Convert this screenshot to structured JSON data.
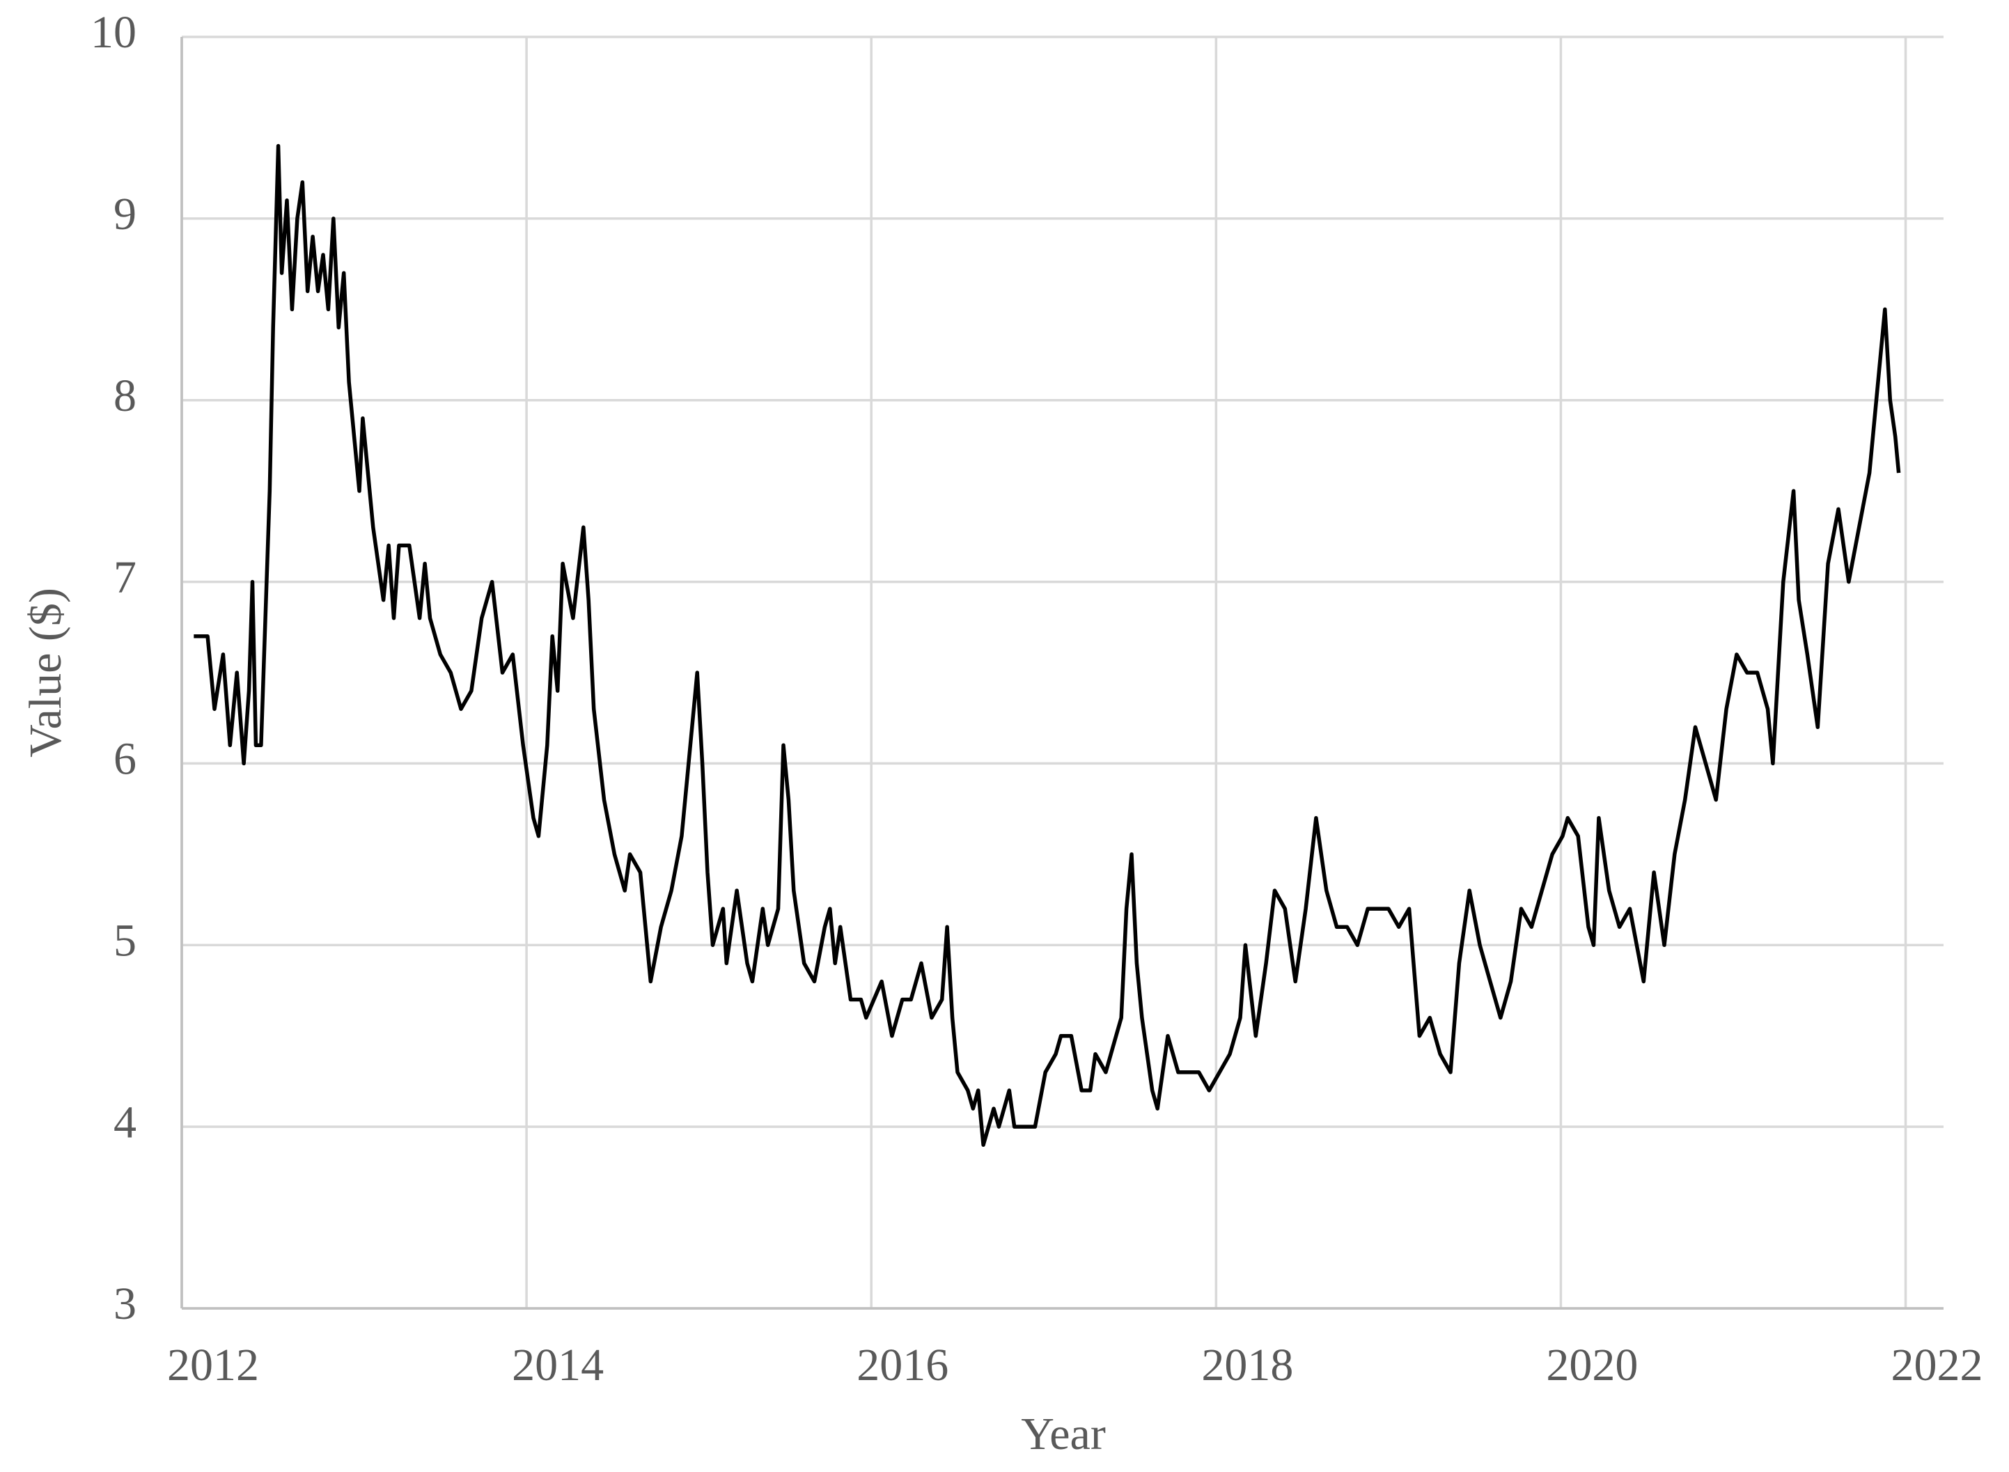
{
  "chart_data": {
    "type": "line",
    "x_label": "Year",
    "y_label": "Value ($)",
    "color": "#000000",
    "grid": true,
    "xlim": [
      2012,
      2022.22
    ],
    "xticks": [
      2012,
      2014,
      2016,
      2018,
      2020,
      2022
    ],
    "ylim": [
      3,
      10
    ],
    "yticks": [
      3,
      4,
      5,
      6,
      7,
      8,
      9,
      10
    ],
    "x": [
      2012.07,
      2012.15,
      2012.19,
      2012.24,
      2012.28,
      2012.32,
      2012.36,
      2012.39,
      2012.41,
      2012.43,
      2012.46,
      2012.51,
      2012.53,
      2012.56,
      2012.58,
      2012.61,
      2012.64,
      2012.67,
      2012.7,
      2012.73,
      2012.76,
      2012.79,
      2012.82,
      2012.85,
      2012.88,
      2012.91,
      2012.94,
      2012.97,
      2013.03,
      2013.05,
      2013.11,
      2013.17,
      2013.2,
      2013.23,
      2013.26,
      2013.32,
      2013.38,
      2013.41,
      2013.44,
      2013.5,
      2013.56,
      2013.62,
      2013.68,
      2013.74,
      2013.8,
      2013.86,
      2013.92,
      2013.98,
      2014.04,
      2014.07,
      2014.12,
      2014.15,
      2014.18,
      2014.21,
      2014.27,
      2014.33,
      2014.36,
      2014.39,
      2014.45,
      2014.51,
      2014.57,
      2014.6,
      2014.66,
      2014.72,
      2014.78,
      2014.84,
      2014.9,
      2014.96,
      2014.99,
      2015.02,
      2015.05,
      2015.08,
      2015.14,
      2015.16,
      2015.22,
      2015.28,
      2015.31,
      2015.37,
      2015.4,
      2015.46,
      2015.49,
      2015.52,
      2015.55,
      2015.61,
      2015.67,
      2015.73,
      2015.76,
      2015.79,
      2015.82,
      2015.88,
      2015.94,
      2015.97,
      2016.06,
      2016.12,
      2016.18,
      2016.23,
      2016.29,
      2016.35,
      2016.41,
      2016.44,
      2016.47,
      2016.5,
      2016.56,
      2016.59,
      2016.62,
      2016.65,
      2016.71,
      2016.74,
      2016.8,
      2016.83,
      2016.89,
      2016.95,
      2017.01,
      2017.07,
      2017.1,
      2017.16,
      2017.22,
      2017.27,
      2017.3,
      2017.36,
      2017.42,
      2017.45,
      2017.48,
      2017.51,
      2017.54,
      2017.57,
      2017.63,
      2017.66,
      2017.72,
      2017.78,
      2017.84,
      2017.9,
      2017.96,
      2018.02,
      2018.08,
      2018.14,
      2018.17,
      2018.23,
      2018.29,
      2018.34,
      2018.4,
      2018.46,
      2018.52,
      2018.58,
      2018.64,
      2018.7,
      2018.76,
      2018.82,
      2018.88,
      2018.94,
      2019.0,
      2019.06,
      2019.12,
      2019.18,
      2019.24,
      2019.3,
      2019.36,
      2019.41,
      2019.47,
      2019.53,
      2019.59,
      2019.65,
      2019.71,
      2019.77,
      2019.83,
      2019.89,
      2019.95,
      2020.01,
      2020.04,
      2020.1,
      2020.16,
      2020.19,
      2020.22,
      2020.28,
      2020.34,
      2020.4,
      2020.48,
      2020.54,
      2020.6,
      2020.66,
      2020.72,
      2020.78,
      2020.84,
      2020.9,
      2020.96,
      2021.02,
      2021.08,
      2021.14,
      2021.2,
      2021.23,
      2021.29,
      2021.35,
      2021.38,
      2021.43,
      2021.49,
      2021.55,
      2021.61,
      2021.67,
      2021.73,
      2021.79,
      2021.85,
      2021.88,
      2021.91,
      2021.94,
      2021.96
    ],
    "values": [
      6.7,
      6.7,
      6.3,
      6.6,
      6.1,
      6.5,
      6.0,
      6.4,
      7.0,
      6.1,
      6.1,
      7.5,
      8.4,
      9.4,
      8.7,
      9.1,
      8.5,
      9.0,
      9.2,
      8.6,
      8.9,
      8.6,
      8.8,
      8.5,
      9.0,
      8.4,
      8.7,
      8.1,
      7.5,
      7.9,
      7.3,
      6.9,
      7.2,
      6.8,
      7.2,
      7.2,
      6.8,
      7.1,
      6.8,
      6.6,
      6.5,
      6.3,
      6.4,
      6.8,
      7.0,
      6.5,
      6.6,
      6.1,
      5.7,
      5.6,
      6.1,
      6.7,
      6.4,
      7.1,
      6.8,
      7.3,
      6.9,
      6.3,
      5.8,
      5.5,
      5.3,
      5.5,
      5.4,
      4.8,
      5.1,
      5.3,
      5.6,
      6.2,
      6.5,
      6.0,
      5.4,
      5.0,
      5.2,
      4.9,
      5.3,
      4.9,
      4.8,
      5.2,
      5.0,
      5.2,
      6.1,
      5.8,
      5.3,
      4.9,
      4.8,
      5.1,
      5.2,
      4.9,
      5.1,
      4.7,
      4.7,
      4.6,
      4.8,
      4.5,
      4.7,
      4.7,
      4.9,
      4.6,
      4.7,
      5.1,
      4.6,
      4.3,
      4.2,
      4.1,
      4.2,
      3.9,
      4.1,
      4.0,
      4.2,
      4.0,
      4.0,
      4.0,
      4.3,
      4.4,
      4.5,
      4.5,
      4.2,
      4.2,
      4.4,
      4.3,
      4.5,
      4.6,
      5.2,
      5.5,
      4.9,
      4.6,
      4.2,
      4.1,
      4.5,
      4.3,
      4.3,
      4.3,
      4.2,
      4.3,
      4.4,
      4.6,
      5.0,
      4.5,
      4.9,
      5.3,
      5.2,
      4.8,
      5.2,
      5.7,
      5.3,
      5.1,
      5.1,
      5.0,
      5.2,
      5.2,
      5.2,
      5.1,
      5.2,
      4.5,
      4.6,
      4.4,
      4.3,
      4.9,
      5.3,
      5.0,
      4.8,
      4.6,
      4.8,
      5.2,
      5.1,
      5.3,
      5.5,
      5.6,
      5.7,
      5.6,
      5.1,
      5.0,
      5.7,
      5.3,
      5.1,
      5.2,
      4.8,
      5.4,
      5.0,
      5.5,
      5.8,
      6.2,
      6.0,
      5.8,
      6.3,
      6.6,
      6.5,
      6.5,
      6.3,
      6.0,
      7.0,
      7.5,
      6.9,
      6.6,
      6.2,
      7.1,
      7.4,
      7.0,
      7.3,
      7.6,
      8.2,
      8.5,
      8.0,
      7.8,
      7.6
    ]
  }
}
